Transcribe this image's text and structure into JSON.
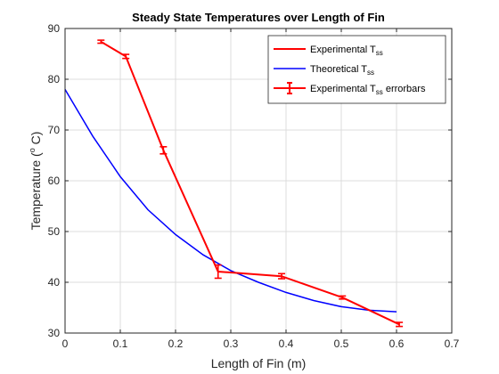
{
  "chart_data": {
    "type": "line",
    "title": "Steady State Temperatures over Length of Fin",
    "xlabel": "Length of Fin (m)",
    "ylabel": {
      "main": "Temperature (",
      "sup": "o",
      "tail": " C)"
    },
    "xlim": [
      0,
      0.7
    ],
    "ylim": [
      30,
      90
    ],
    "xticks": [
      "0",
      "0.1",
      "0.2",
      "0.3",
      "0.4",
      "0.5",
      "0.6",
      "0.7"
    ],
    "yticks": [
      "30",
      "40",
      "50",
      "60",
      "70",
      "80",
      "90"
    ],
    "grid": true,
    "legend_position": "top-right",
    "legend": [
      {
        "label": "Experimental T",
        "sub": "ss",
        "tail": ""
      },
      {
        "label": "Theoretical T",
        "sub": "ss",
        "tail": ""
      },
      {
        "label": "Experimental T",
        "sub": "ss",
        "tail": " errorbars"
      }
    ],
    "series": [
      {
        "color": "#ff0000",
        "style": "line-with-errorbars",
        "x": [
          0.065,
          0.11,
          0.178,
          0.277,
          0.392,
          0.502,
          0.605
        ],
        "y": [
          87.4,
          84.5,
          66.0,
          42.1,
          41.2,
          37.0,
          31.7
        ],
        "err": [
          0.3,
          0.4,
          0.7,
          1.3,
          0.5,
          0.3,
          0.4
        ]
      },
      {
        "color": "#0000ff",
        "style": "line",
        "x": [
          0,
          0.05,
          0.1,
          0.15,
          0.2,
          0.25,
          0.3,
          0.35,
          0.4,
          0.45,
          0.5,
          0.55,
          0.6
        ],
        "y": [
          78.0,
          68.8,
          60.8,
          54.3,
          49.4,
          45.4,
          42.3,
          40.0,
          38.0,
          36.4,
          35.2,
          34.5,
          34.2
        ]
      }
    ]
  }
}
